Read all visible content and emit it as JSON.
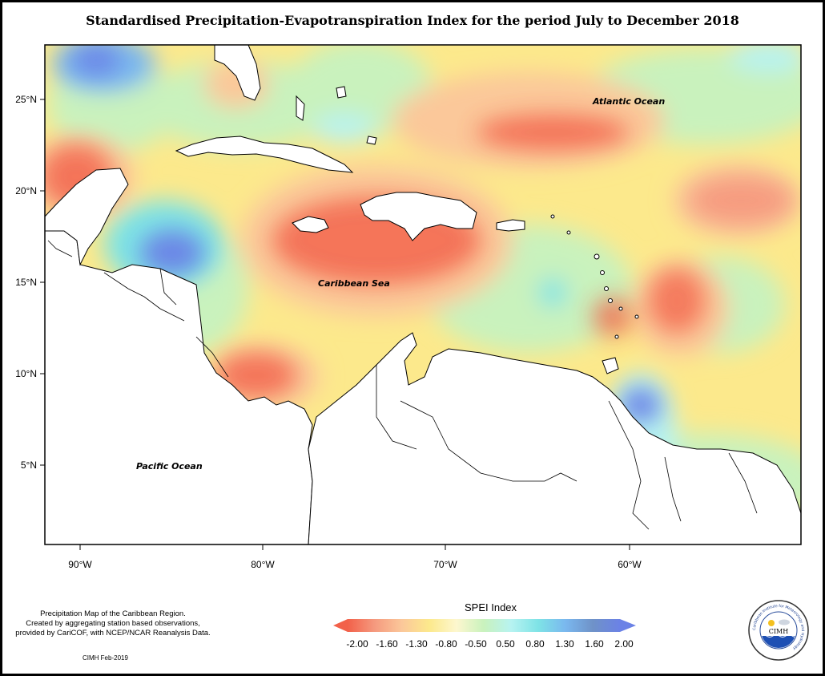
{
  "title": "Standardised Precipitation-Evapotranspiration Index for the period July to December 2018",
  "axes": {
    "lat_labels": [
      "25°N",
      "20°N",
      "15°N",
      "10°N",
      "5°N"
    ],
    "lon_labels": [
      "90°W",
      "80°W",
      "70°W",
      "60°W"
    ]
  },
  "regions": {
    "atlantic": "Atlantic Ocean",
    "caribbean": "Caribbean Sea",
    "pacific": "Pacific Ocean"
  },
  "legend": {
    "title": "SPEI Index",
    "breaks": [
      "-2.00",
      "-1.60",
      "-1.30",
      "-0.80",
      "-0.50",
      "0.50",
      "0.80",
      "1.30",
      "1.60",
      "2.00"
    ],
    "colors": [
      "#f2614a",
      "#f59a7f",
      "#fbc89a",
      "#fce98c",
      "#fdf7cf",
      "#c9f2bd",
      "#b7f3f1",
      "#7ee3e6",
      "#7ab8ef",
      "#6f92c8",
      "#6b82e6"
    ]
  },
  "note": {
    "lines": [
      "Precipitation Map of the Caribbean Region.",
      "Created by aggregating station based observations,",
      "provided by CariCOF, with NCEP/NCAR Reanalysis Data."
    ],
    "credit": "CIMH Feb-2019"
  },
  "logo": {
    "text": "CIMH",
    "ring_text": "Caribbean Institute for Meteorology and Hydrology"
  }
}
